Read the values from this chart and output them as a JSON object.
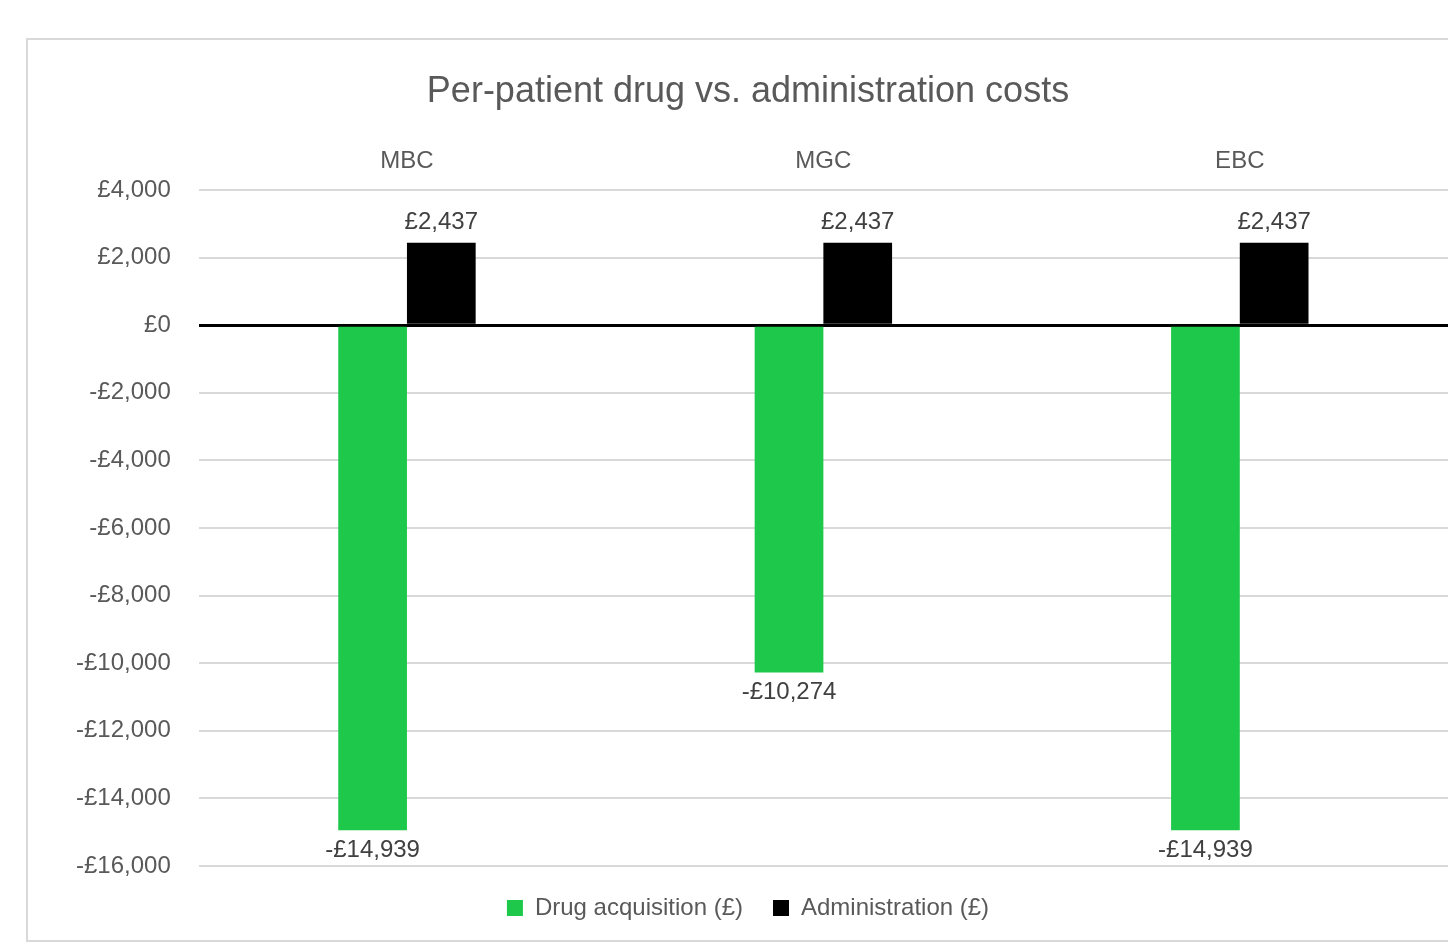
{
  "chart_data": {
    "type": "bar",
    "title": "Per-patient drug vs. administration costs",
    "categories": [
      "MBC",
      "MGC",
      "EBC"
    ],
    "series": [
      {
        "name": "Drug acquisition (£)",
        "color": "#1ec84a",
        "values": [
          -14939,
          -10274,
          -14939
        ],
        "value_labels": [
          "-£14,939",
          "-£10,274",
          "-£14,939"
        ]
      },
      {
        "name": "Administration (£)",
        "color": "#000000",
        "values": [
          2437,
          2437,
          2437
        ],
        "value_labels": [
          "£2,437",
          "£2,437",
          "£2,437"
        ]
      }
    ],
    "ylim": [
      -16000,
      4000
    ],
    "yticks": [
      {
        "value": -16000,
        "label": "-£16,000"
      },
      {
        "value": -14000,
        "label": "-£14,000"
      },
      {
        "value": -12000,
        "label": "-£12,000"
      },
      {
        "value": -10000,
        "label": "-£10,000"
      },
      {
        "value": -8000,
        "label": "-£8,000"
      },
      {
        "value": -6000,
        "label": "-£6,000"
      },
      {
        "value": -4000,
        "label": "-£4,000"
      },
      {
        "value": -2000,
        "label": "-£2,000"
      },
      {
        "value": 0,
        "label": "£0"
      },
      {
        "value": 2000,
        "label": "£2,000"
      },
      {
        "value": 4000,
        "label": "£4,000"
      }
    ],
    "grid": "y",
    "legend": "bottom"
  }
}
